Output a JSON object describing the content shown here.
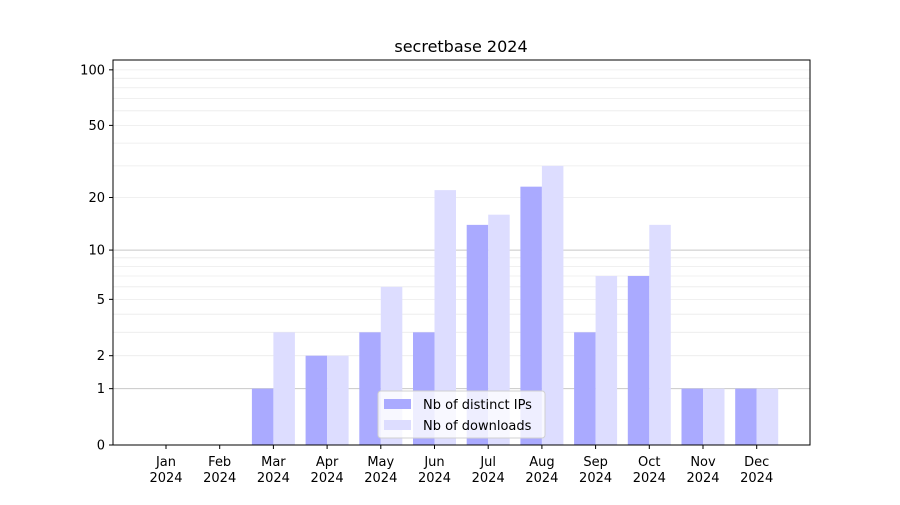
{
  "chart_data": {
    "type": "bar",
    "title": "secretbase 2024",
    "xlabel": "",
    "ylabel": "",
    "y_scale": "log10(1+y)",
    "ylim": [
      0,
      113
    ],
    "yticks": [
      0,
      1,
      2,
      5,
      10,
      20,
      50,
      100
    ],
    "grid": true,
    "legend_position": "lower center",
    "categories": [
      "Jan\n2024",
      "Feb\n2024",
      "Mar\n2024",
      "Apr\n2024",
      "May\n2024",
      "Jun\n2024",
      "Jul\n2024",
      "Aug\n2024",
      "Sep\n2024",
      "Oct\n2024",
      "Nov\n2024",
      "Dec\n2024"
    ],
    "series": [
      {
        "name": "Nb of distinct IPs",
        "color": "#aaaaff",
        "values": [
          0,
          0,
          1,
          2,
          3,
          3,
          14,
          23,
          3,
          7,
          1,
          1
        ]
      },
      {
        "name": "Nb of downloads",
        "color": "#ddddff",
        "values": [
          0,
          0,
          3,
          2,
          6,
          22,
          16,
          30,
          7,
          14,
          1,
          1
        ]
      }
    ]
  }
}
